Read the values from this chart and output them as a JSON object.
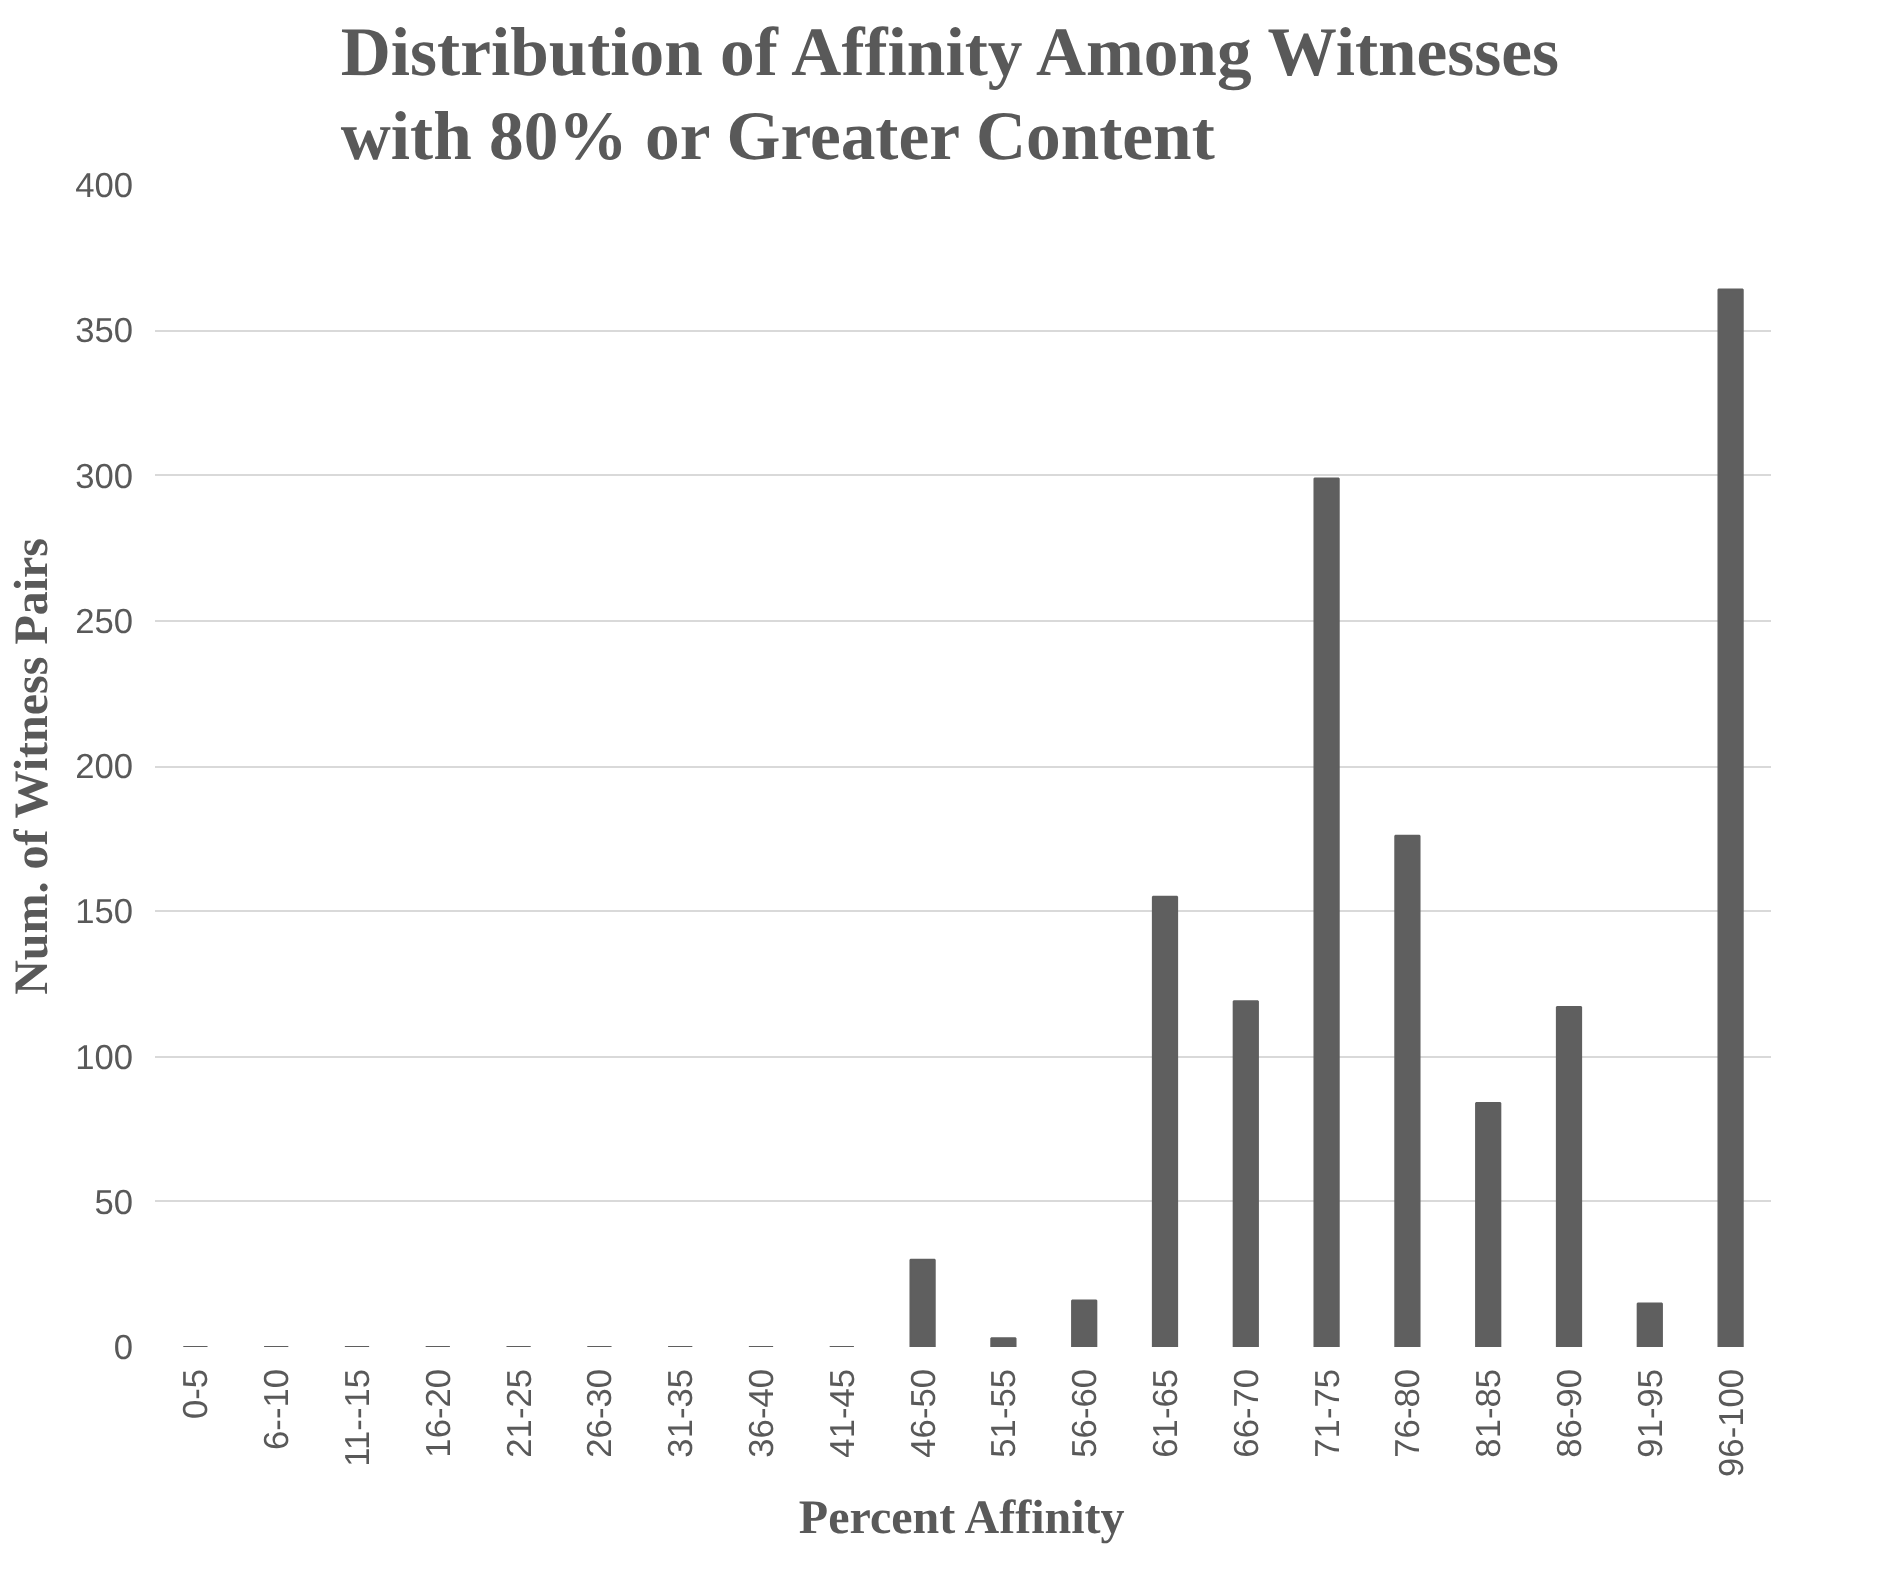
{
  "chart_data": {
    "type": "bar",
    "title": "Distribution of  Affinity Among Witnesses\nwith 80% or Greater Content",
    "xlabel": "Percent Affinity",
    "ylabel": "Num. of Witness Pairs",
    "categories": [
      "0-5",
      "6--10",
      "11--15",
      "16-20",
      "21-25",
      "26-30",
      "31-35",
      "36-40",
      "41-45",
      "46-50",
      "51-55",
      "56-60",
      "61-65",
      "66-70",
      "71-75",
      "76-80",
      "81-85",
      "86-90",
      "91-95",
      "96-100"
    ],
    "values": [
      0,
      0,
      0,
      0,
      0,
      0,
      0,
      0,
      0,
      30,
      3,
      16,
      155,
      119,
      299,
      176,
      84,
      117,
      15,
      364
    ],
    "color": "#5f5f5f",
    "ylim": [
      0,
      400
    ],
    "yticks": [
      0,
      50,
      100,
      150,
      200,
      250,
      300,
      350,
      400
    ],
    "grid": "y"
  }
}
